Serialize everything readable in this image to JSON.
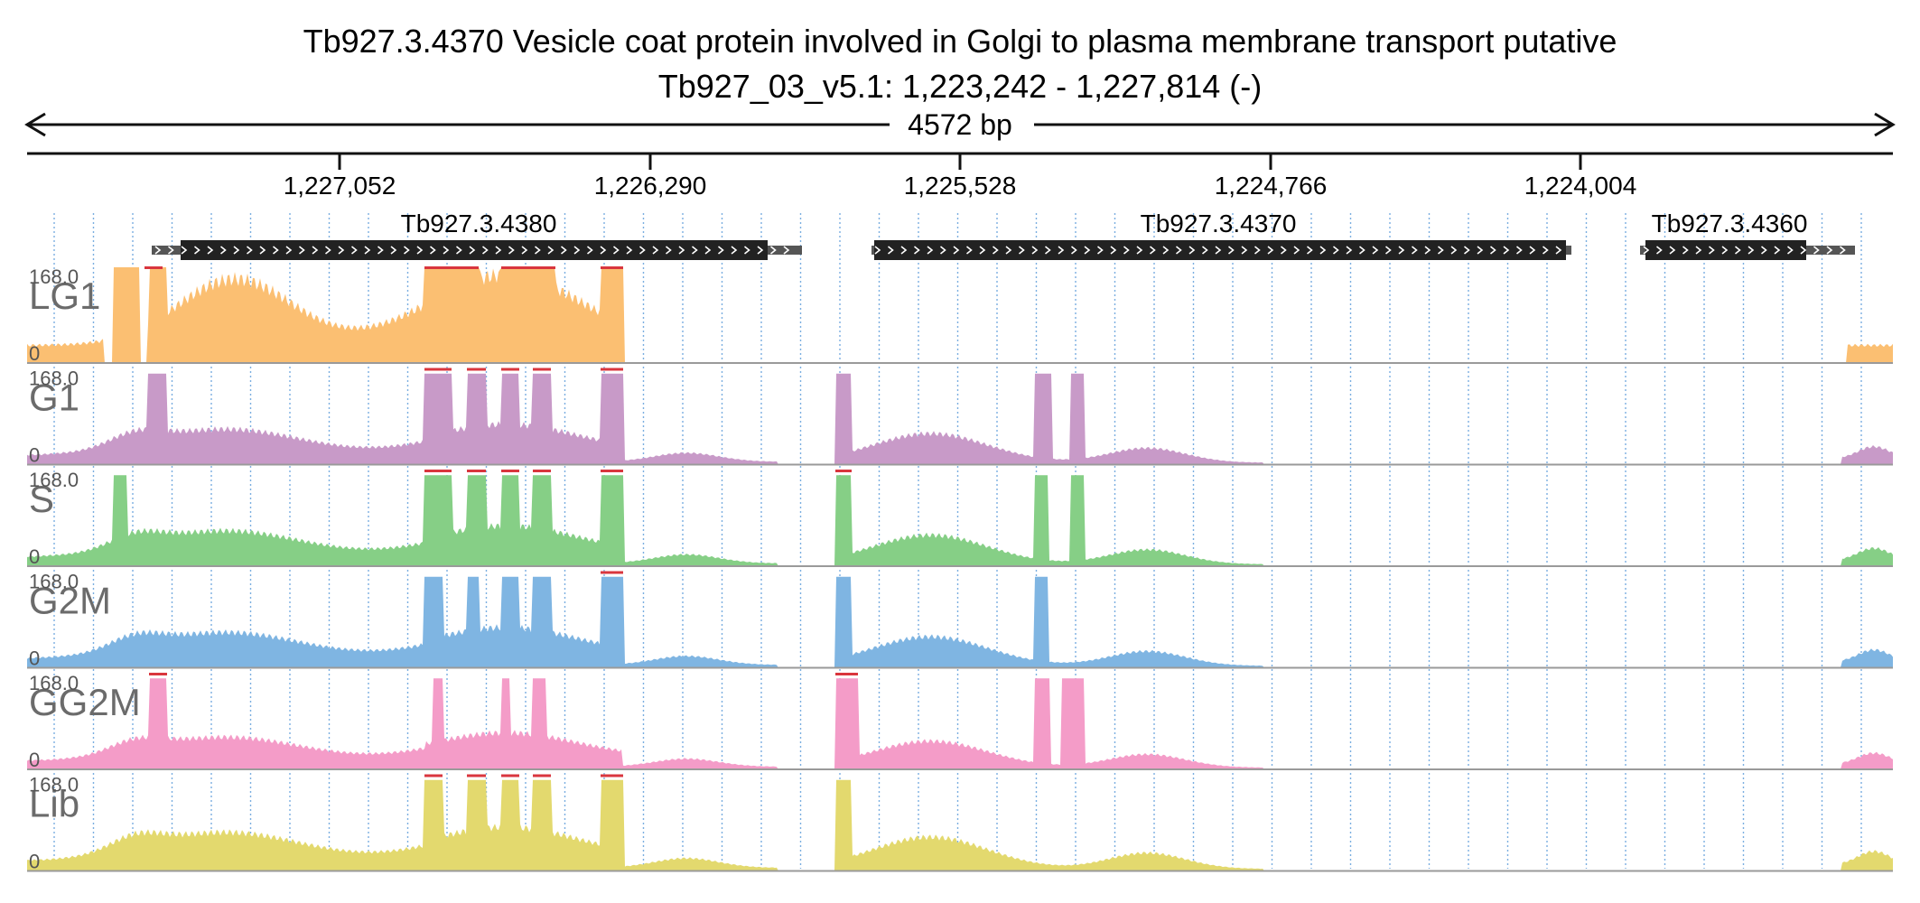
{
  "header": {
    "title_line1": "Tb927.3.4370  Vesicle coat protein involved in Golgi to plasma membrane transport  putative",
    "title_line2": "Tb927_03_v5.1: 1,223,242 - 1,227,814 (-)",
    "span_label": "4572 bp"
  },
  "ruler": {
    "ticks": [
      "1,227,052",
      "1,226,290",
      "1,225,528",
      "1,224,766",
      "1,224,004"
    ]
  },
  "genes": [
    {
      "name": "Tb927.3.4380"
    },
    {
      "name": "Tb927.3.4370"
    },
    {
      "name": "Tb927.3.4360"
    }
  ],
  "tracks": [
    {
      "label": "LG1",
      "color": "#fbbf72",
      "max_label": "168.0",
      "min_label": "0"
    },
    {
      "label": "G1",
      "color": "#c89ac8",
      "max_label": "168.0",
      "min_label": "0"
    },
    {
      "label": "S",
      "color": "#86cf86",
      "max_label": "168.0",
      "min_label": "0"
    },
    {
      "label": "G2M",
      "color": "#7fb5e2",
      "max_label": "168.0",
      "min_label": "0"
    },
    {
      "label": "GG2M",
      "color": "#f49cc8",
      "max_label": "168.0",
      "min_label": "0"
    },
    {
      "label": "Lib",
      "color": "#e3d96e",
      "max_label": "168.0",
      "min_label": "0"
    }
  ],
  "colors": {
    "clip": "#d9363e",
    "gene": "#222222",
    "utr": "#555555",
    "grid": "#7aaee0"
  }
}
